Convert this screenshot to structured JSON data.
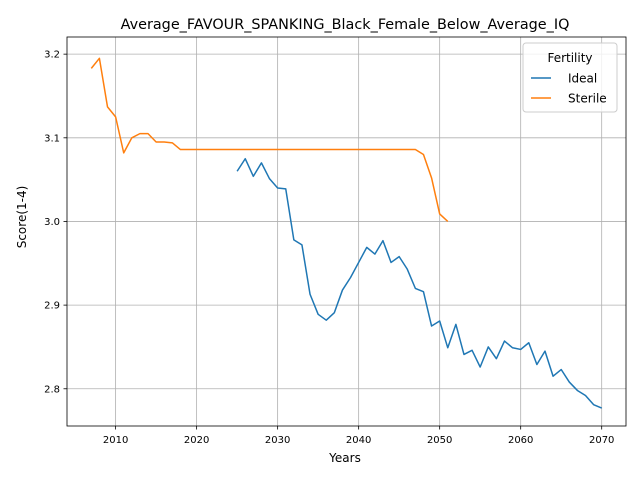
{
  "chart_data": {
    "type": "line",
    "title": "Average_FAVOUR_SPANKING_Black_Female_Below_Average_IQ",
    "xlabel": "Years",
    "ylabel": "Score(1-4)",
    "xlim": [
      2004,
      2073
    ],
    "ylim": [
      2.7555,
      3.2205
    ],
    "x_ticks": [
      2010,
      2020,
      2030,
      2040,
      2050,
      2060,
      2070
    ],
    "y_ticks": [
      2.8,
      2.9,
      3.0,
      3.1,
      3.2
    ],
    "x_tick_labels": [
      "2010",
      "2020",
      "2030",
      "2040",
      "2050",
      "2060",
      "2070"
    ],
    "y_tick_labels": [
      "2.8",
      "2.9",
      "3.0",
      "3.1",
      "3.2"
    ],
    "grid": true,
    "legend": {
      "title": "Fertility",
      "placement": "top-right"
    },
    "series": [
      {
        "name": "Ideal",
        "color": "#1f77b4",
        "x": [
          2025,
          2026,
          2027,
          2028,
          2029,
          2030,
          2031,
          2032,
          2033,
          2034,
          2035,
          2036,
          2037,
          2038,
          2039,
          2040,
          2041,
          2042,
          2043,
          2044,
          2045,
          2046,
          2047,
          2048,
          2049,
          2050,
          2051,
          2052,
          2053,
          2054,
          2055,
          2056,
          2057,
          2058,
          2059,
          2060,
          2061,
          2062,
          2063,
          2064,
          2065,
          2066,
          2067,
          2068,
          2069,
          2070
        ],
        "y": [
          3.06,
          3.075,
          3.054,
          3.07,
          3.051,
          3.04,
          3.039,
          2.978,
          2.972,
          2.913,
          2.889,
          2.882,
          2.891,
          2.918,
          2.933,
          2.951,
          2.969,
          2.961,
          2.977,
          2.951,
          2.958,
          2.943,
          2.92,
          2.916,
          2.875,
          2.881,
          2.849,
          2.877,
          2.841,
          2.846,
          2.826,
          2.85,
          2.836,
          2.857,
          2.849,
          2.847,
          2.855,
          2.829,
          2.845,
          2.815,
          2.823,
          2.808,
          2.798,
          2.792,
          2.781,
          2.777
        ]
      },
      {
        "name": "Sterile",
        "color": "#ff7f0e",
        "x": [
          2007,
          2008,
          2009,
          2010,
          2011,
          2012,
          2013,
          2014,
          2015,
          2016,
          2017,
          2018,
          2019,
          2020,
          2021,
          2022,
          2023,
          2024,
          2025,
          2026,
          2027,
          2028,
          2029,
          2030,
          2031,
          2032,
          2033,
          2034,
          2035,
          2036,
          2037,
          2038,
          2039,
          2040,
          2041,
          2042,
          2043,
          2044,
          2045,
          2046,
          2047,
          2048,
          2049,
          2050,
          2051
        ],
        "y": [
          3.183,
          3.195,
          3.137,
          3.125,
          3.082,
          3.1,
          3.105,
          3.105,
          3.095,
          3.095,
          3.094,
          3.086,
          3.086,
          3.086,
          3.086,
          3.086,
          3.086,
          3.086,
          3.086,
          3.086,
          3.086,
          3.086,
          3.086,
          3.086,
          3.086,
          3.086,
          3.086,
          3.086,
          3.086,
          3.086,
          3.086,
          3.086,
          3.086,
          3.086,
          3.086,
          3.086,
          3.086,
          3.086,
          3.086,
          3.086,
          3.086,
          3.08,
          3.052,
          3.009,
          3.0
        ]
      }
    ]
  }
}
